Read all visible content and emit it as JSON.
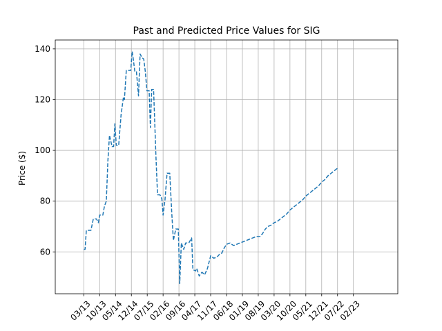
{
  "chart_data": {
    "type": "line",
    "title": "Past and Predicted Price Values for SIG",
    "xlabel": "",
    "ylabel": "Price ($)",
    "xlim": [
      -1.8,
      19.8
    ],
    "ylim": [
      43.5,
      143.5
    ],
    "grid": true,
    "line_color": "#1f77b4",
    "line_style": "dashed",
    "x_ticks": [
      {
        "x": 0,
        "label": "03/13"
      },
      {
        "x": 1,
        "label": "10/13"
      },
      {
        "x": 2,
        "label": "05/14"
      },
      {
        "x": 3,
        "label": "12/14"
      },
      {
        "x": 4,
        "label": "07/15"
      },
      {
        "x": 5,
        "label": "02/16"
      },
      {
        "x": 6,
        "label": "09/16"
      },
      {
        "x": 7,
        "label": "04/17"
      },
      {
        "x": 8,
        "label": "11/17"
      },
      {
        "x": 9,
        "label": "06/18"
      },
      {
        "x": 10,
        "label": "01/19"
      },
      {
        "x": 11,
        "label": "08/19"
      },
      {
        "x": 12,
        "label": "03/20"
      },
      {
        "x": 13,
        "label": "10/20"
      },
      {
        "x": 14,
        "label": "05/21"
      },
      {
        "x": 15,
        "label": "12/21"
      },
      {
        "x": 16,
        "label": "07/22"
      },
      {
        "x": 17,
        "label": "02/23"
      }
    ],
    "y_ticks": [
      {
        "y": 60,
        "label": "60"
      },
      {
        "y": 80,
        "label": "80"
      },
      {
        "y": 100,
        "label": "100"
      },
      {
        "y": 120,
        "label": "120"
      },
      {
        "y": 140,
        "label": "140"
      }
    ],
    "series": [
      {
        "values": [
          [
            0.0,
            61.0
          ],
          [
            0.08,
            61.0
          ],
          [
            0.16,
            68.5
          ],
          [
            0.28,
            68.5
          ],
          [
            0.45,
            68.5
          ],
          [
            0.6,
            73.0
          ],
          [
            0.8,
            73.0
          ],
          [
            0.92,
            71.5
          ],
          [
            1.0,
            74.5
          ],
          [
            1.12,
            74.5
          ],
          [
            1.2,
            74.5
          ],
          [
            1.3,
            78.0
          ],
          [
            1.42,
            80.0
          ],
          [
            1.52,
            96.0
          ],
          [
            1.62,
            106.0
          ],
          [
            1.78,
            101.5
          ],
          [
            1.88,
            101.5
          ],
          [
            1.96,
            110.5
          ],
          [
            2.05,
            102.0
          ],
          [
            2.2,
            102.0
          ],
          [
            2.35,
            114.0
          ],
          [
            2.5,
            121.0
          ],
          [
            2.56,
            120.0
          ],
          [
            2.68,
            131.5
          ],
          [
            2.85,
            131.5
          ],
          [
            2.96,
            131.5
          ],
          [
            3.05,
            139.0
          ],
          [
            3.12,
            136.0
          ],
          [
            3.22,
            131.0
          ],
          [
            3.32,
            131.0
          ],
          [
            3.45,
            121.5
          ],
          [
            3.55,
            138.0
          ],
          [
            3.68,
            136.5
          ],
          [
            3.78,
            136.0
          ],
          [
            3.88,
            131.0
          ],
          [
            3.98,
            123.5
          ],
          [
            4.12,
            123.5
          ],
          [
            4.2,
            109.0
          ],
          [
            4.28,
            124.0
          ],
          [
            4.4,
            124.0
          ],
          [
            4.55,
            97.5
          ],
          [
            4.65,
            82.5
          ],
          [
            4.8,
            82.5
          ],
          [
            4.92,
            81.0
          ],
          [
            5.0,
            74.5
          ],
          [
            5.12,
            80.5
          ],
          [
            5.25,
            91.0
          ],
          [
            5.42,
            91.0
          ],
          [
            5.55,
            75.0
          ],
          [
            5.65,
            64.5
          ],
          [
            5.8,
            69.0
          ],
          [
            5.96,
            69.0
          ],
          [
            6.05,
            47.5
          ],
          [
            6.15,
            63.5
          ],
          [
            6.3,
            61.0
          ],
          [
            6.42,
            63.5
          ],
          [
            6.62,
            63.5
          ],
          [
            6.8,
            65.5
          ],
          [
            6.88,
            53.0
          ],
          [
            7.05,
            52.5
          ],
          [
            7.12,
            53.5
          ],
          [
            7.28,
            50.5
          ],
          [
            7.45,
            52.0
          ],
          [
            7.62,
            51.0
          ],
          [
            7.8,
            53.5
          ],
          [
            8.0,
            58.5
          ],
          [
            8.2,
            57.5
          ],
          [
            8.4,
            58.0
          ],
          [
            8.55,
            59.0
          ],
          [
            8.7,
            59.5
          ],
          [
            8.85,
            61.5
          ],
          [
            9.0,
            63.0
          ],
          [
            9.22,
            63.5
          ],
          [
            9.45,
            62.5
          ],
          [
            9.65,
            63.0
          ],
          [
            9.85,
            63.5
          ],
          [
            10.05,
            64.0
          ],
          [
            10.25,
            64.5
          ],
          [
            10.45,
            65.0
          ],
          [
            10.65,
            65.5
          ],
          [
            10.85,
            66.0
          ],
          [
            11.1,
            66.0
          ],
          [
            11.25,
            67.0
          ],
          [
            11.45,
            69.0
          ],
          [
            11.6,
            70.0
          ],
          [
            11.8,
            70.5
          ],
          [
            12.0,
            71.5
          ],
          [
            12.2,
            72.0
          ],
          [
            12.4,
            73.0
          ],
          [
            12.6,
            74.0
          ],
          [
            12.8,
            75.0
          ],
          [
            13.0,
            76.5
          ],
          [
            13.2,
            77.5
          ],
          [
            13.4,
            78.5
          ],
          [
            13.6,
            79.5
          ],
          [
            13.8,
            80.5
          ],
          [
            14.0,
            82.0
          ],
          [
            14.2,
            83.0
          ],
          [
            14.4,
            84.0
          ],
          [
            14.6,
            85.0
          ],
          [
            14.8,
            86.0
          ],
          [
            15.0,
            87.5
          ],
          [
            15.2,
            88.5
          ],
          [
            15.4,
            90.0
          ],
          [
            15.6,
            91.0
          ],
          [
            15.8,
            92.0
          ],
          [
            16.0,
            93.0
          ]
        ]
      }
    ]
  }
}
